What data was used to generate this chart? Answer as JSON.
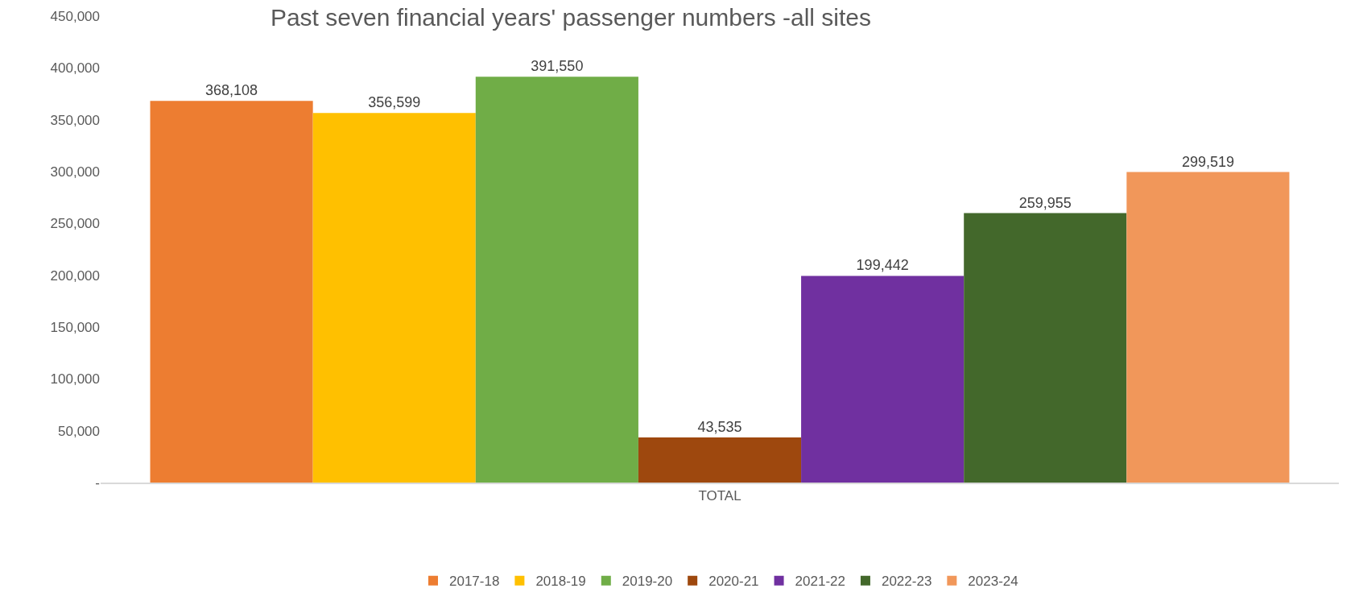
{
  "chart_data": {
    "type": "bar",
    "title": "Past seven financial years' passenger numbers -all sites",
    "categories": [
      "TOTAL"
    ],
    "series": [
      {
        "name": "2017-18",
        "color": "#ed7d31",
        "values": [
          368108
        ],
        "value_labels": [
          "368,108"
        ]
      },
      {
        "name": "2018-19",
        "color": "#ffc000",
        "values": [
          356599
        ],
        "value_labels": [
          "356,599"
        ]
      },
      {
        "name": "2019-20",
        "color": "#70ad47",
        "values": [
          391550
        ],
        "value_labels": [
          "391,550"
        ]
      },
      {
        "name": "2020-21",
        "color": "#9e480e",
        "values": [
          43535
        ],
        "value_labels": [
          "43,535"
        ]
      },
      {
        "name": "2021-22",
        "color": "#7030a0",
        "values": [
          199442
        ],
        "value_labels": [
          "199,442"
        ]
      },
      {
        "name": "2022-23",
        "color": "#43682b",
        "values": [
          259955
        ],
        "value_labels": [
          "259,955"
        ]
      },
      {
        "name": "2023-24",
        "color": "#f1975a",
        "values": [
          299519
        ],
        "value_labels": [
          "299,519"
        ]
      }
    ],
    "ylim": [
      0,
      450000
    ],
    "yticks": [
      {
        "value": 0,
        "label": "-"
      },
      {
        "value": 50000,
        "label": "50,000"
      },
      {
        "value": 100000,
        "label": "100,000"
      },
      {
        "value": 150000,
        "label": "150,000"
      },
      {
        "value": 200000,
        "label": "200,000"
      },
      {
        "value": 250000,
        "label": "250,000"
      },
      {
        "value": 300000,
        "label": "300,000"
      },
      {
        "value": 350000,
        "label": "350,000"
      },
      {
        "value": 400000,
        "label": "400,000"
      },
      {
        "value": 450000,
        "label": "450,000"
      }
    ],
    "grid": false,
    "legend": "bottom"
  }
}
